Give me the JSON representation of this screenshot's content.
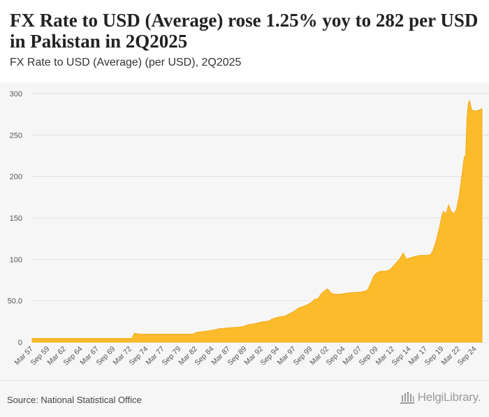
{
  "header": {
    "title": "FX Rate to USD (Average) rose 1.25% yoy to 282 per USD in Pakistan in 2Q2025",
    "subtitle": "FX Rate to USD (Average) (per USD), 2Q2025"
  },
  "footer": {
    "source": "Source: National Statistical Office",
    "brand": "HelgiLibrary."
  },
  "colors": {
    "area": "#fbbb2a",
    "area_stroke": "#f3a614",
    "grid": "#e2e2e2",
    "tick_text": "#555555"
  },
  "chart_data": {
    "type": "area",
    "title": "FX Rate to USD (Average) (per USD), 2Q2025",
    "xlabel": "",
    "ylabel": "",
    "ylim": [
      0,
      300
    ],
    "grid": true,
    "y_ticks": [
      0,
      50,
      100,
      150,
      200,
      250,
      300
    ],
    "y_tick_labels": [
      "0",
      "50.0",
      "100",
      "150",
      "200",
      "250",
      "300"
    ],
    "x_range": [
      1957.0,
      2025.5
    ],
    "x_tick_labels": [
      "Mar 57",
      "Sep 59",
      "Mar 62",
      "Sep 64",
      "Mar 67",
      "Sep 69",
      "Mar 72",
      "Sep 74",
      "Mar 77",
      "Sep 79",
      "Mar 82",
      "Sep 84",
      "Mar 87",
      "Sep 89",
      "Mar 92",
      "Sep 94",
      "Mar 97",
      "Sep 99",
      "Mar 02",
      "Sep 04",
      "Mar 07",
      "Sep 09",
      "Mar 12",
      "Sep 14",
      "Mar 17",
      "Sep 19",
      "Mar 22",
      "Sep 24"
    ],
    "x_tick_positions": [
      1957.2,
      1959.7,
      1962.2,
      1964.7,
      1967.2,
      1969.7,
      1972.2,
      1974.7,
      1977.2,
      1979.7,
      1982.2,
      1984.7,
      1987.2,
      1989.7,
      1992.2,
      1994.7,
      1997.2,
      1999.7,
      2002.2,
      2004.7,
      2007.2,
      2009.7,
      2012.2,
      2014.7,
      2017.2,
      2019.7,
      2022.2,
      2024.7
    ],
    "series": [
      {
        "name": "FX Rate to USD (Average)",
        "x": [
          1957.0,
          1972.2,
          1972.6,
          1973.0,
          1973.5,
          1981.5,
          1982.0,
          1983.0,
          1984.0,
          1985.0,
          1985.5,
          1986.0,
          1987.0,
          1988.0,
          1989.0,
          1990.0,
          1991.0,
          1992.0,
          1993.0,
          1993.5,
          1994.5,
          1995.5,
          1996.0,
          1997.0,
          1997.5,
          1998.5,
          1999.0,
          1999.5,
          2000.0,
          2000.5,
          2001.0,
          2001.5,
          2002.0,
          2002.5,
          2003.0,
          2004.0,
          2005.0,
          2006.0,
          2007.0,
          2007.5,
          2008.0,
          2008.5,
          2009.0,
          2009.5,
          2010.0,
          2011.0,
          2011.5,
          2012.0,
          2012.5,
          2013.0,
          2013.5,
          2014.0,
          2014.2,
          2014.6,
          2015.0,
          2016.0,
          2017.0,
          2017.6,
          2018.0,
          2018.5,
          2019.0,
          2019.3,
          2019.6,
          2020.0,
          2020.4,
          2020.8,
          2021.2,
          2021.6,
          2022.0,
          2022.4,
          2022.8,
          2023.0,
          2023.2,
          2023.4,
          2023.6,
          2023.8,
          2024.0,
          2024.5,
          2025.0,
          2025.5
        ],
        "values": [
          4.76,
          4.76,
          11.0,
          10.3,
          9.9,
          9.9,
          12.0,
          13.0,
          14.0,
          15.5,
          16.5,
          16.8,
          17.5,
          18.0,
          18.7,
          21.5,
          22.5,
          24.7,
          25.5,
          28.0,
          30.5,
          31.6,
          33.6,
          38.0,
          41.1,
          44.0,
          45.8,
          48.0,
          51.8,
          52.5,
          58.5,
          62.0,
          64.5,
          59.5,
          58.0,
          58.0,
          59.5,
          60.2,
          60.6,
          61.5,
          62.5,
          70.0,
          80.0,
          84.0,
          85.5,
          86.0,
          88.0,
          92.0,
          96.5,
          101.0,
          108.0,
          100.0,
          101.0,
          102.0,
          103.0,
          104.8,
          105.0,
          105.5,
          110.0,
          122.0,
          138.0,
          150.0,
          158.0,
          155.0,
          166.0,
          158.0,
          155.0,
          160.0,
          176.0,
          200.0,
          224.0,
          225.0,
          270.0,
          288.0,
          292.0,
          285.0,
          280.0,
          279.0,
          280.0,
          282.0
        ]
      }
    ]
  }
}
